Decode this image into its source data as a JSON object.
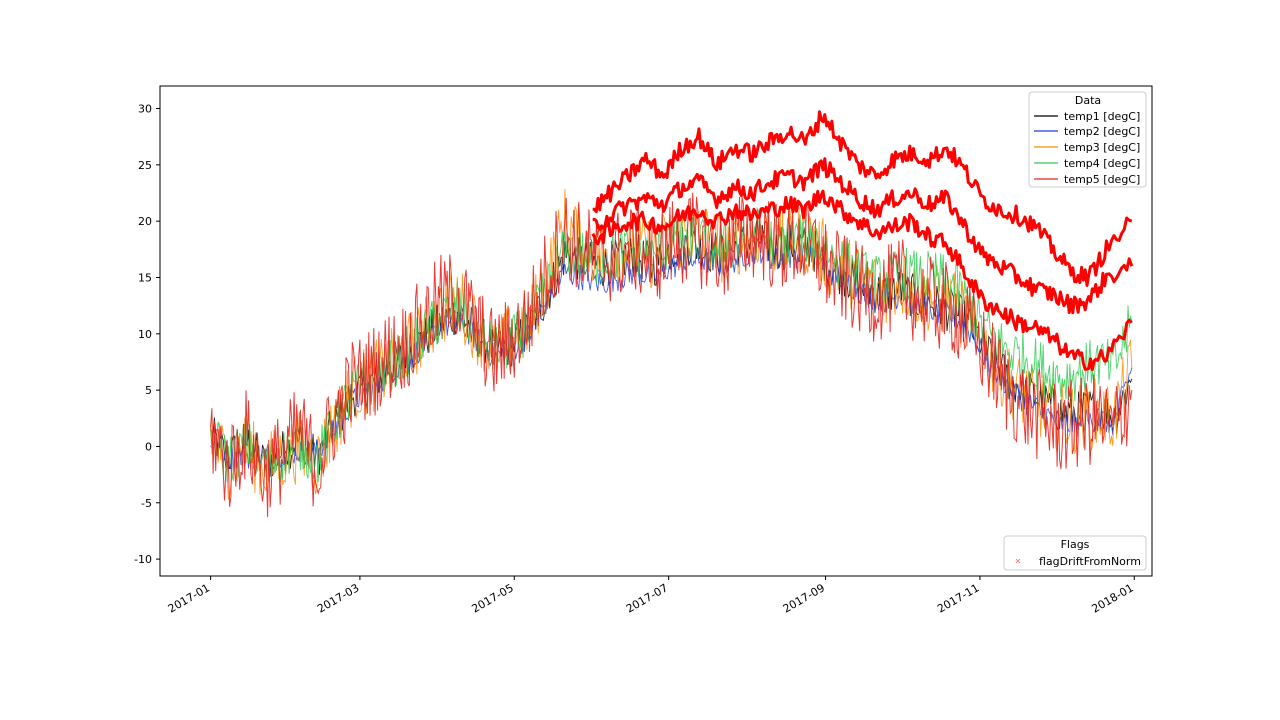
{
  "chart_data": {
    "type": "line",
    "x_type": "date",
    "xlim": [
      "2016-12-12",
      "2018-01-08"
    ],
    "ylim": [
      -11.5,
      32.0
    ],
    "x_ticks": [
      "2017-01",
      "2017-03",
      "2017-05",
      "2017-07",
      "2017-09",
      "2017-11",
      "2018-01"
    ],
    "y_ticks": [
      -10,
      -5,
      0,
      5,
      10,
      15,
      20,
      25,
      30
    ],
    "grid": false,
    "legends": [
      {
        "title": "Data",
        "placement": "top-right",
        "entries": [
          "temp1 [degC]",
          "temp2 [degC]",
          "temp3 [degC]",
          "temp4 [degC]",
          "temp5 [degC]"
        ]
      },
      {
        "title": "Flags",
        "placement": "bottom-right",
        "entries": [
          "flagDriftFromNorm"
        ]
      }
    ],
    "series": [
      {
        "name": "temp1 [degC]",
        "color": "#000000",
        "x": [
          "2017-01-01",
          "2017-01-08",
          "2017-01-15",
          "2017-01-22",
          "2017-01-29",
          "2017-02-05",
          "2017-02-12",
          "2017-02-19",
          "2017-02-26",
          "2017-03-05",
          "2017-03-12",
          "2017-03-19",
          "2017-03-26",
          "2017-04-02",
          "2017-04-09",
          "2017-04-16",
          "2017-04-23",
          "2017-04-30",
          "2017-05-07",
          "2017-05-14",
          "2017-05-21",
          "2017-05-28",
          "2017-06-04",
          "2017-06-11",
          "2017-06-18",
          "2017-06-25",
          "2017-07-02",
          "2017-07-09",
          "2017-07-16",
          "2017-07-23",
          "2017-07-30",
          "2017-08-06",
          "2017-08-13",
          "2017-08-20",
          "2017-08-27",
          "2017-09-03",
          "2017-09-10",
          "2017-09-17",
          "2017-09-24",
          "2017-10-01",
          "2017-10-08",
          "2017-10-15",
          "2017-10-22",
          "2017-10-29",
          "2017-11-05",
          "2017-11-12",
          "2017-11-19",
          "2017-11-26",
          "2017-12-03",
          "2017-12-10",
          "2017-12-17",
          "2017-12-24",
          "2017-12-31"
        ],
        "values": [
          1.0,
          -1.0,
          0.5,
          -1.5,
          -0.5,
          0.5,
          -1.0,
          2.0,
          4.5,
          5.5,
          7.0,
          8.0,
          9.5,
          11.0,
          12.0,
          10.0,
          8.5,
          9.0,
          10.5,
          13.5,
          17.0,
          16.5,
          16.0,
          16.5,
          17.0,
          16.0,
          17.5,
          18.0,
          17.5,
          17.0,
          18.0,
          18.5,
          17.5,
          18.0,
          17.5,
          16.0,
          15.0,
          14.0,
          13.5,
          14.0,
          13.0,
          12.5,
          12.0,
          10.5,
          8.0,
          6.0,
          5.0,
          4.0,
          3.0,
          3.0,
          3.5,
          2.5,
          6.0
        ]
      },
      {
        "name": "temp2 [degC]",
        "color": "#1f3fdf",
        "x": [
          "2017-01-01",
          "2017-01-08",
          "2017-01-15",
          "2017-01-22",
          "2017-01-29",
          "2017-02-05",
          "2017-02-12",
          "2017-02-19",
          "2017-02-26",
          "2017-03-05",
          "2017-03-12",
          "2017-03-19",
          "2017-03-26",
          "2017-04-02",
          "2017-04-09",
          "2017-04-16",
          "2017-04-23",
          "2017-04-30",
          "2017-05-07",
          "2017-05-14",
          "2017-05-21",
          "2017-05-28",
          "2017-06-04",
          "2017-06-11",
          "2017-06-18",
          "2017-06-25",
          "2017-07-02",
          "2017-07-09",
          "2017-07-16",
          "2017-07-23",
          "2017-07-30",
          "2017-08-06",
          "2017-08-13",
          "2017-08-20",
          "2017-08-27",
          "2017-09-03",
          "2017-09-10",
          "2017-09-17",
          "2017-09-24",
          "2017-10-01",
          "2017-10-08",
          "2017-10-15",
          "2017-10-22",
          "2017-10-29",
          "2017-11-05",
          "2017-11-12",
          "2017-11-19",
          "2017-11-26",
          "2017-12-03",
          "2017-12-10",
          "2017-12-17",
          "2017-12-24",
          "2017-12-31"
        ],
        "values": [
          0.5,
          -1.0,
          -0.8,
          -1.0,
          -0.6,
          -0.4,
          -0.5,
          1.5,
          4.0,
          5.0,
          6.5,
          7.5,
          9.0,
          10.5,
          11.0,
          9.5,
          8.0,
          8.5,
          10.0,
          13.0,
          15.5,
          15.0,
          14.5,
          15.0,
          15.5,
          15.0,
          16.0,
          16.5,
          16.5,
          16.0,
          17.0,
          17.5,
          16.5,
          17.0,
          17.0,
          15.5,
          14.5,
          13.5,
          13.0,
          13.5,
          12.5,
          12.0,
          11.5,
          10.0,
          7.0,
          5.5,
          4.0,
          3.0,
          2.0,
          2.0,
          2.5,
          2.0,
          7.0
        ]
      },
      {
        "name": "temp3 [degC]",
        "color": "#ff8c00",
        "x": [
          "2017-01-01",
          "2017-01-08",
          "2017-01-15",
          "2017-01-22",
          "2017-01-29",
          "2017-02-05",
          "2017-02-12",
          "2017-02-19",
          "2017-02-26",
          "2017-03-05",
          "2017-03-12",
          "2017-03-19",
          "2017-03-26",
          "2017-04-02",
          "2017-04-09",
          "2017-04-16",
          "2017-04-23",
          "2017-04-30",
          "2017-05-07",
          "2017-05-14",
          "2017-05-21",
          "2017-05-28",
          "2017-06-04",
          "2017-06-11",
          "2017-06-18",
          "2017-06-25",
          "2017-07-02",
          "2017-07-09",
          "2017-07-16",
          "2017-07-23",
          "2017-07-30",
          "2017-08-06",
          "2017-08-13",
          "2017-08-20",
          "2017-08-27",
          "2017-09-03",
          "2017-09-10",
          "2017-09-17",
          "2017-09-24",
          "2017-10-01",
          "2017-10-08",
          "2017-10-15",
          "2017-10-22",
          "2017-10-29",
          "2017-11-05",
          "2017-11-12",
          "2017-11-19",
          "2017-11-26",
          "2017-12-03",
          "2017-12-10",
          "2017-12-17",
          "2017-12-24",
          "2017-12-31"
        ],
        "values": [
          1.0,
          -1.5,
          0.0,
          -2.0,
          -1.0,
          0.0,
          -1.5,
          2.0,
          5.0,
          6.0,
          7.0,
          8.5,
          10.0,
          12.0,
          13.0,
          10.5,
          8.5,
          9.5,
          11.0,
          15.0,
          20.0,
          18.0,
          17.0,
          17.5,
          18.0,
          17.0,
          18.5,
          19.0,
          18.5,
          17.5,
          18.5,
          19.0,
          18.0,
          18.5,
          18.0,
          16.5,
          15.5,
          14.5,
          14.0,
          14.5,
          13.5,
          13.0,
          12.5,
          10.5,
          8.0,
          6.0,
          4.5,
          3.5,
          2.5,
          2.5,
          3.0,
          2.5,
          7.0
        ]
      },
      {
        "name": "temp4 [degC]",
        "color": "#2ecc52",
        "x": [
          "2017-01-01",
          "2017-01-08",
          "2017-01-15",
          "2017-01-22",
          "2017-01-29",
          "2017-02-05",
          "2017-02-12",
          "2017-02-19",
          "2017-02-26",
          "2017-03-05",
          "2017-03-12",
          "2017-03-19",
          "2017-03-26",
          "2017-04-02",
          "2017-04-09",
          "2017-04-16",
          "2017-04-23",
          "2017-04-30",
          "2017-05-07",
          "2017-05-14",
          "2017-05-21",
          "2017-05-28",
          "2017-06-04",
          "2017-06-11",
          "2017-06-18",
          "2017-06-25",
          "2017-07-02",
          "2017-07-09",
          "2017-07-16",
          "2017-07-23",
          "2017-07-30",
          "2017-08-06",
          "2017-08-13",
          "2017-08-20",
          "2017-08-27",
          "2017-09-03",
          "2017-09-10",
          "2017-09-17",
          "2017-09-24",
          "2017-10-01",
          "2017-10-08",
          "2017-10-15",
          "2017-10-22",
          "2017-10-29",
          "2017-11-05",
          "2017-11-12",
          "2017-11-19",
          "2017-11-26",
          "2017-12-03",
          "2017-12-10",
          "2017-12-17",
          "2017-12-24",
          "2017-12-31"
        ],
        "values": [
          1.0,
          -1.2,
          0.2,
          -1.8,
          -0.8,
          0.2,
          -1.2,
          2.0,
          4.8,
          5.8,
          7.0,
          8.2,
          9.8,
          11.5,
          12.5,
          10.2,
          8.5,
          9.2,
          10.8,
          14.0,
          17.5,
          17.0,
          16.5,
          17.0,
          17.5,
          16.5,
          18.0,
          18.5,
          18.0,
          17.5,
          18.5,
          19.0,
          18.0,
          18.5,
          18.5,
          17.0,
          16.0,
          15.0,
          14.5,
          15.5,
          15.0,
          15.0,
          14.5,
          12.0,
          10.0,
          8.5,
          8.0,
          7.0,
          6.0,
          6.5,
          7.5,
          7.0,
          11.0
        ]
      },
      {
        "name": "temp5 [degC]",
        "color": "#e8251f",
        "x": [
          "2017-01-01",
          "2017-01-08",
          "2017-01-15",
          "2017-01-22",
          "2017-01-29",
          "2017-02-05",
          "2017-02-12",
          "2017-02-19",
          "2017-02-26",
          "2017-03-05",
          "2017-03-12",
          "2017-03-19",
          "2017-03-26",
          "2017-04-02",
          "2017-04-09",
          "2017-04-16",
          "2017-04-23",
          "2017-04-30",
          "2017-05-07",
          "2017-05-14",
          "2017-05-21",
          "2017-05-28",
          "2017-06-04",
          "2017-06-11",
          "2017-06-18",
          "2017-06-25",
          "2017-07-02",
          "2017-07-09",
          "2017-07-16",
          "2017-07-23",
          "2017-07-30",
          "2017-08-06",
          "2017-08-13",
          "2017-08-20",
          "2017-08-27",
          "2017-09-03",
          "2017-09-10",
          "2017-09-17",
          "2017-09-24",
          "2017-10-01",
          "2017-10-08",
          "2017-10-15",
          "2017-10-22",
          "2017-10-29",
          "2017-11-05",
          "2017-11-12",
          "2017-11-19",
          "2017-11-26",
          "2017-12-03",
          "2017-12-10",
          "2017-12-17",
          "2017-12-24",
          "2017-12-31"
        ],
        "values": [
          1.5,
          -2.0,
          1.0,
          -2.5,
          -1.0,
          1.5,
          -2.0,
          2.5,
          5.5,
          6.5,
          8.0,
          9.0,
          11.0,
          13.0,
          13.5,
          10.5,
          8.0,
          9.5,
          11.5,
          15.5,
          19.0,
          17.5,
          16.5,
          17.0,
          17.5,
          16.5,
          18.0,
          18.5,
          18.0,
          17.0,
          18.5,
          19.0,
          17.5,
          18.0,
          17.5,
          15.5,
          14.5,
          13.5,
          13.5,
          14.5,
          13.0,
          12.5,
          12.0,
          10.0,
          7.5,
          5.0,
          3.5,
          2.5,
          1.5,
          2.0,
          2.5,
          1.5,
          5.0
        ]
      }
    ],
    "flags": {
      "name": "flagDriftFromNorm",
      "color": "#ff0000",
      "marker": "x",
      "x": [
        "2017-06-01",
        "2017-06-08",
        "2017-06-15",
        "2017-06-22",
        "2017-06-29",
        "2017-07-06",
        "2017-07-13",
        "2017-07-20",
        "2017-07-27",
        "2017-08-03",
        "2017-08-10",
        "2017-08-17",
        "2017-08-24",
        "2017-08-31",
        "2017-09-07",
        "2017-09-14",
        "2017-09-21",
        "2017-09-28",
        "2017-10-05",
        "2017-10-12",
        "2017-10-19",
        "2017-10-26",
        "2017-11-02",
        "2017-11-09",
        "2017-11-16",
        "2017-11-23",
        "2017-11-30",
        "2017-12-07",
        "2017-12-14",
        "2017-12-21",
        "2017-12-31"
      ],
      "upper": [
        21.0,
        22.5,
        24.0,
        25.5,
        24.0,
        26.5,
        27.5,
        25.0,
        26.5,
        26.0,
        27.0,
        28.0,
        27.0,
        29.5,
        27.0,
        25.0,
        24.0,
        25.5,
        26.0,
        25.5,
        26.5,
        24.5,
        22.0,
        21.0,
        20.5,
        19.5,
        17.5,
        15.5,
        15.0,
        17.5,
        20.0
      ],
      "middle": [
        19.5,
        20.5,
        21.5,
        22.0,
        21.5,
        23.0,
        23.5,
        22.0,
        23.0,
        22.5,
        23.5,
        24.0,
        23.5,
        25.0,
        23.5,
        22.0,
        21.0,
        22.0,
        22.5,
        21.5,
        22.0,
        19.5,
        17.0,
        16.0,
        15.0,
        14.0,
        13.5,
        12.5,
        13.0,
        15.0,
        16.0
      ],
      "lower": [
        18.5,
        19.0,
        20.0,
        20.0,
        19.5,
        20.5,
        21.0,
        20.0,
        21.0,
        20.5,
        21.0,
        21.5,
        21.0,
        22.5,
        21.0,
        20.0,
        19.0,
        19.5,
        20.0,
        18.5,
        18.0,
        15.5,
        13.0,
        12.0,
        11.0,
        10.5,
        9.5,
        8.0,
        7.5,
        8.0,
        11.0
      ]
    }
  }
}
